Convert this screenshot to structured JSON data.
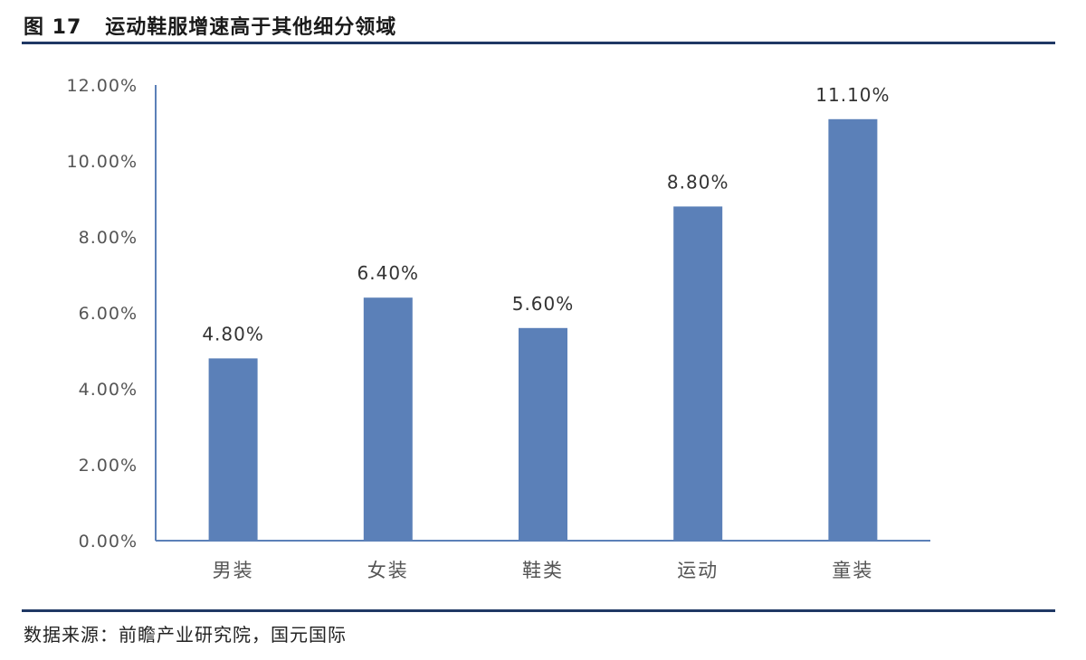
{
  "header": {
    "figure_number": "图 17",
    "title": "运动鞋服增速高于其他细分领域"
  },
  "source": "数据来源：前瞻产业研究院，国元国际",
  "colors": {
    "bar": "#5b80b8",
    "axis": "#5b80b8",
    "rule": "#1f3864"
  },
  "chart_data": {
    "type": "bar",
    "title": "运动鞋服增速高于其他细分领域",
    "categories": [
      "男装",
      "女装",
      "鞋类",
      "运动",
      "童装"
    ],
    "values": [
      4.8,
      6.4,
      5.6,
      8.8,
      11.1
    ],
    "value_labels": [
      "4.80%",
      "6.40%",
      "5.60%",
      "8.80%",
      "11.10%"
    ],
    "yticks": [
      0,
      2,
      4,
      6,
      8,
      10,
      12
    ],
    "ytick_labels": [
      "0.00%",
      "2.00%",
      "4.00%",
      "6.00%",
      "8.00%",
      "10.00%",
      "12.00%"
    ],
    "ylim": [
      0,
      12
    ],
    "xlabel": "",
    "ylabel": "",
    "grid": false,
    "legend": "none"
  }
}
